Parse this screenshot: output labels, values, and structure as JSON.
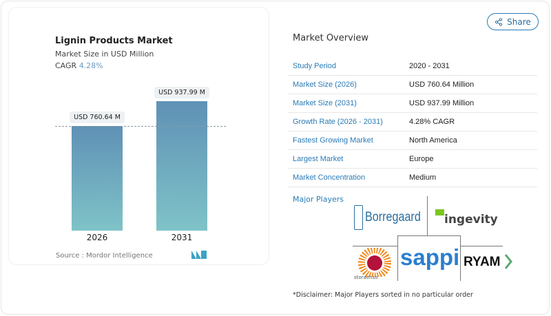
{
  "share_label": "Share",
  "chart_data": {
    "type": "bar",
    "title": "Lignin Products Market",
    "subtitle": "Market Size in USD Million",
    "cagr_label": "CAGR",
    "cagr_value": "4.28%",
    "categories": [
      "2026",
      "2031"
    ],
    "values": [
      760.64,
      937.99
    ],
    "data_labels": [
      "USD 760.64 M",
      "USD 937.99 M"
    ],
    "bar_color_top": "#5f91b5",
    "bar_color_bottom": "#7fc3c8",
    "source": "Source :  Mordor Intelligence"
  },
  "overview": {
    "title": "Market Overview",
    "rows": [
      {
        "k": "Study Period",
        "v": "2020 - 2031"
      },
      {
        "k": "Market Size (2026)",
        "v": "USD 760.64 Million"
      },
      {
        "k": "Market Size (2031)",
        "v": "USD 937.99 Million"
      },
      {
        "k": "Growth Rate (2026 - 2031)",
        "v": "4.28% CAGR"
      },
      {
        "k": "Fastest Growing Market",
        "v": "North America"
      },
      {
        "k": "Largest Market",
        "v": "Europe"
      },
      {
        "k": "Market Concentration",
        "v": "Medium"
      }
    ]
  },
  "players": {
    "title": "Major Players",
    "logos": [
      "Borregaard",
      "ingevity",
      "storaenso",
      "sappi",
      "RYAM"
    ],
    "disclaimer": "*Disclaimer: Major Players sorted in no particular order"
  }
}
